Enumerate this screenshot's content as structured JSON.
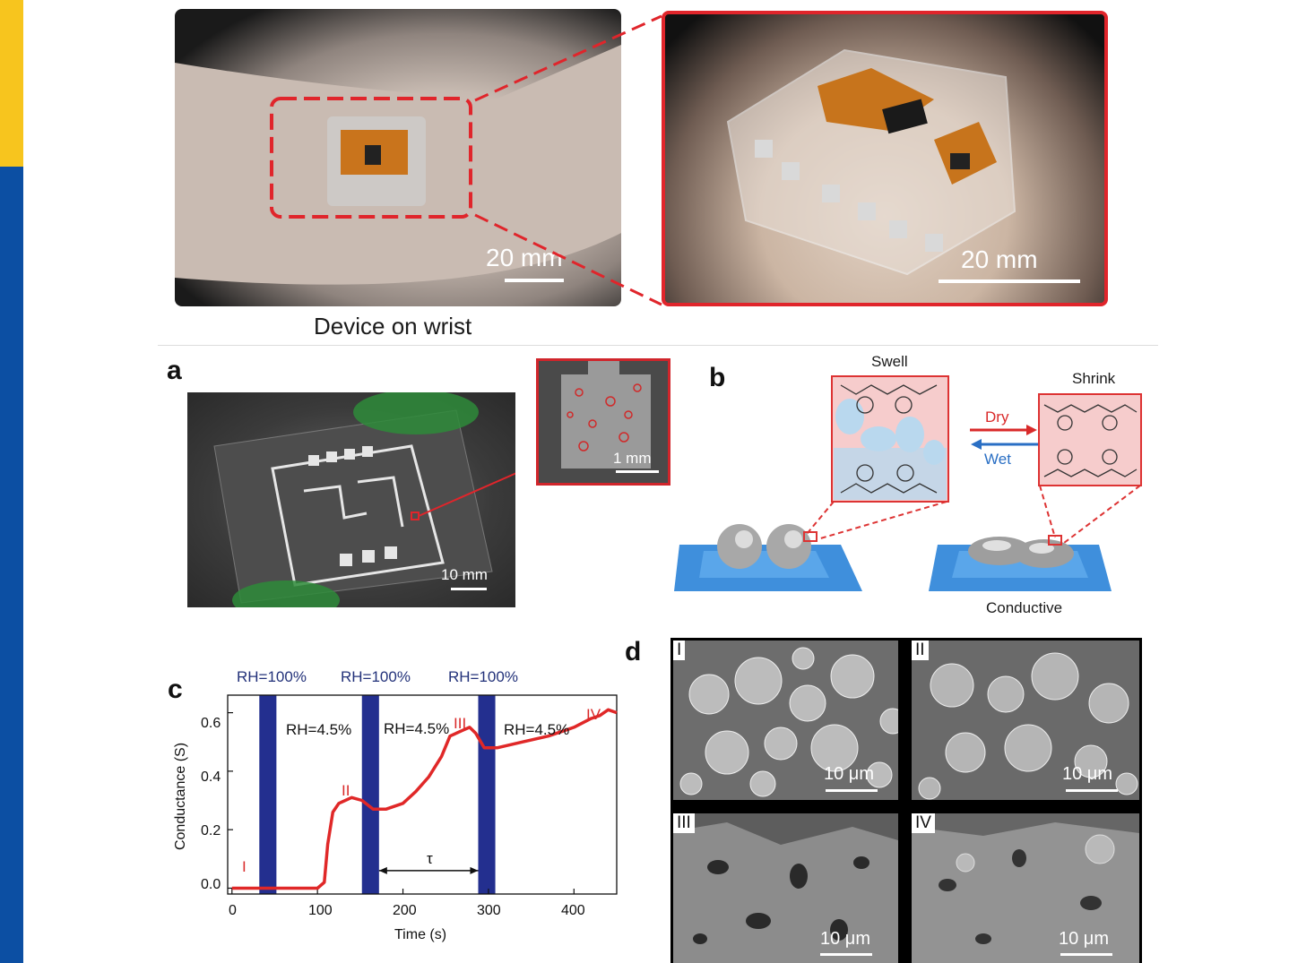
{
  "top": {
    "scale_left": "20 mm",
    "scale_right": "20 mm",
    "caption": "Device on wrist"
  },
  "panel_a": {
    "letter": "a",
    "pcb_scale": "10 mm",
    "inset_scale": "1 mm"
  },
  "panel_b": {
    "letter": "b",
    "swell": "Swell",
    "shrink": "Shrink",
    "dry": "Dry",
    "wet": "Wet",
    "conductive": "Conductive"
  },
  "panel_c": {
    "letter": "c",
    "rh_high": [
      "RH=100%",
      "RH=100%",
      "RH=100%"
    ],
    "rh_low": [
      "RH=4.5%",
      "RH=4.5%",
      "RH=4.5%"
    ],
    "markers": [
      "I",
      "II",
      "III",
      "IV"
    ],
    "tau": "τ",
    "xlabel": "Time (s)",
    "ylabel": "Conductance (S)"
  },
  "chart_data": {
    "type": "line",
    "xlabel": "Time (s)",
    "ylabel": "Conductance (S)",
    "xlim": [
      -5,
      450
    ],
    "ylim": [
      -0.02,
      0.66
    ],
    "xticks": [
      "0",
      "100",
      "200",
      "300",
      "400"
    ],
    "yticks": [
      "0.0",
      "0.2",
      "0.4",
      "0.6"
    ],
    "shaded_intervals_s": [
      [
        32,
        52
      ],
      [
        152,
        172
      ],
      [
        288,
        308
      ]
    ],
    "series": [
      {
        "color": "#e02828",
        "x": [
          0,
          30,
          60,
          100,
          108,
          112,
          118,
          125,
          140,
          152,
          165,
          180,
          200,
          215,
          230,
          245,
          255,
          270,
          278,
          285,
          295,
          310,
          340,
          370,
          400,
          420,
          430,
          440,
          450
        ],
        "y": [
          0.0,
          0.0,
          0.0,
          0.0,
          0.02,
          0.15,
          0.26,
          0.29,
          0.31,
          0.3,
          0.27,
          0.27,
          0.29,
          0.33,
          0.38,
          0.45,
          0.52,
          0.54,
          0.55,
          0.53,
          0.48,
          0.48,
          0.5,
          0.52,
          0.55,
          0.58,
          0.59,
          0.61,
          0.6
        ]
      }
    ]
  },
  "panel_d": {
    "letter": "d",
    "tiles": [
      {
        "tag": "I",
        "scale": "10 μm"
      },
      {
        "tag": "II",
        "scale": "10 μm"
      },
      {
        "tag": "III",
        "scale": "10 μm"
      },
      {
        "tag": "IV",
        "scale": "10 μm"
      }
    ]
  }
}
